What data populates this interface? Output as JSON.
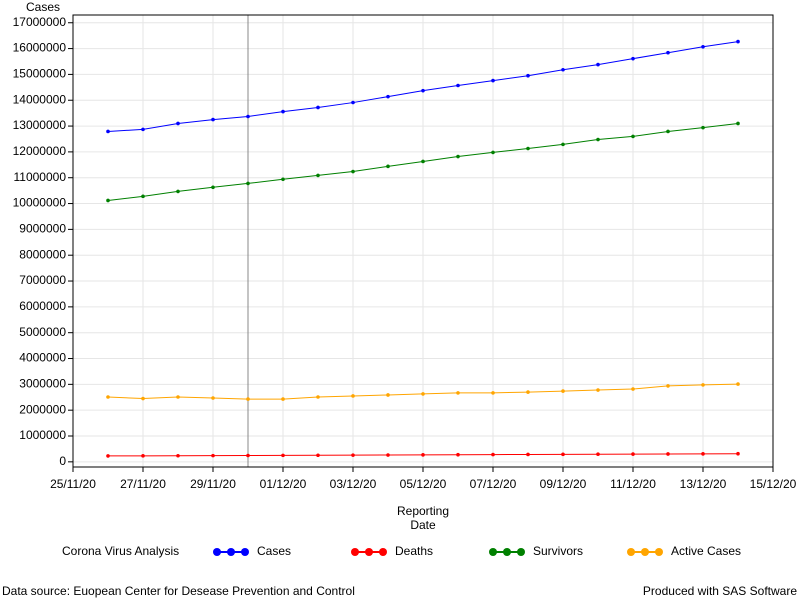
{
  "chart_data": {
    "type": "line",
    "ylabel": "Cases",
    "xlabel": [
      "Reporting",
      "Date"
    ],
    "x": [
      "26/11/20",
      "27/11/20",
      "28/11/20",
      "29/11/20",
      "30/11/20",
      "01/12/20",
      "02/12/20",
      "03/12/20",
      "04/12/20",
      "05/12/20",
      "06/12/20",
      "07/12/20",
      "08/12/20",
      "09/12/20",
      "10/12/20",
      "11/12/20",
      "12/12/20",
      "13/12/20",
      "14/12/20"
    ],
    "xlim": [
      "25/11/20",
      "15/12/20"
    ],
    "xticks": [
      "25/11/20",
      "27/11/20",
      "29/11/20",
      "01/12/20",
      "03/12/20",
      "05/12/20",
      "07/12/20",
      "09/12/20",
      "11/12/20",
      "13/12/20",
      "15/12/20"
    ],
    "refline_x": "30/11/20",
    "ylim": [
      -200000,
      17300000
    ],
    "yticks": [
      0,
      1000000,
      2000000,
      3000000,
      4000000,
      5000000,
      6000000,
      7000000,
      8000000,
      9000000,
      10000000,
      11000000,
      12000000,
      13000000,
      14000000,
      15000000,
      16000000,
      17000000
    ],
    "grid": true,
    "legend_title": "Corona Virus Analysis",
    "series": [
      {
        "name": "Cases",
        "color": "#0000ff",
        "values": [
          12790000,
          12870000,
          13100000,
          13250000,
          13370000,
          13560000,
          13720000,
          13910000,
          14140000,
          14370000,
          14570000,
          14760000,
          14950000,
          15180000,
          15380000,
          15610000,
          15840000,
          16070000,
          16270000
        ]
      },
      {
        "name": "Deaths",
        "color": "#ff0000",
        "values": [
          230000,
          232000,
          236000,
          240000,
          245000,
          250000,
          255000,
          260000,
          265000,
          270000,
          275000,
          280000,
          285000,
          290000,
          295000,
          300000,
          305000,
          310000,
          315000
        ]
      },
      {
        "name": "Survivors",
        "color": "#008000",
        "values": [
          10120000,
          10280000,
          10470000,
          10630000,
          10780000,
          10940000,
          11090000,
          11240000,
          11440000,
          11630000,
          11820000,
          11980000,
          12130000,
          12290000,
          12480000,
          12600000,
          12790000,
          12940000,
          13100000
        ]
      },
      {
        "name": "Active Cases",
        "color": "#ffa500",
        "values": [
          2510000,
          2450000,
          2510000,
          2470000,
          2430000,
          2430000,
          2510000,
          2550000,
          2590000,
          2630000,
          2670000,
          2670000,
          2700000,
          2740000,
          2780000,
          2820000,
          2940000,
          2980000,
          3010000
        ]
      }
    ],
    "footnote_left": "Data source: Euopean Center for Desease Prevention and Control",
    "footnote_right": "Produced with SAS Software"
  }
}
